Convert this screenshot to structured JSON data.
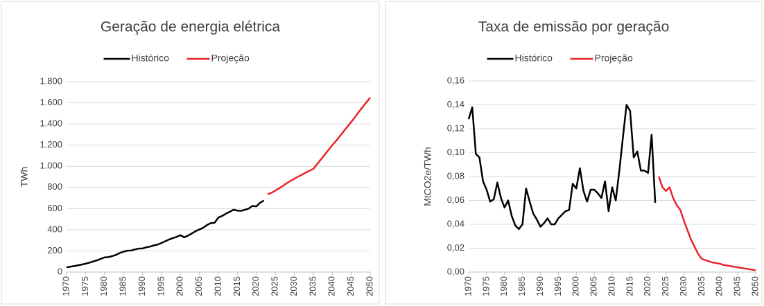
{
  "chart_data": [
    {
      "type": "line",
      "title": "Geração de energia elétrica",
      "ylabel": "TWh",
      "xlim": [
        1970,
        2050
      ],
      "xticks": [
        1970,
        1975,
        1980,
        1985,
        1990,
        1995,
        2000,
        2005,
        2010,
        2015,
        2020,
        2025,
        2030,
        2035,
        2040,
        2045,
        2050
      ],
      "ylim": [
        0,
        1800
      ],
      "yticks": [
        0,
        200,
        400,
        600,
        800,
        {
          "value": 1000,
          "label": "1.000"
        },
        {
          "value": 1200,
          "label": "1.200"
        },
        {
          "value": 1400,
          "label": "1.400"
        },
        {
          "value": 1600,
          "label": "1.600"
        },
        {
          "value": 1800,
          "label": "1.800"
        }
      ],
      "grid": true,
      "legend": "top",
      "series": [
        {
          "name": "Histórico",
          "color": "#000000",
          "x": [
            1970,
            1971,
            1972,
            1973,
            1974,
            1975,
            1976,
            1977,
            1978,
            1979,
            1980,
            1981,
            1982,
            1983,
            1984,
            1985,
            1986,
            1987,
            1988,
            1989,
            1990,
            1991,
            1992,
            1993,
            1994,
            1995,
            1996,
            1997,
            1998,
            1999,
            2000,
            2001,
            2002,
            2003,
            2004,
            2005,
            2006,
            2007,
            2008,
            2009,
            2010,
            2011,
            2012,
            2013,
            2014,
            2015,
            2016,
            2017,
            2018,
            2019,
            2020,
            2021,
            2022
          ],
          "values": [
            45,
            51,
            57,
            64,
            71,
            79,
            89,
            100,
            111,
            125,
            139,
            141,
            151,
            162,
            180,
            193,
            202,
            204,
            214,
            222,
            223,
            234,
            241,
            252,
            260,
            275,
            291,
            308,
            321,
            333,
            349,
            328,
            345,
            365,
            387,
            403,
            419,
            445,
            463,
            466,
            516,
            531,
            552,
            570,
            590,
            581,
            579,
            589,
            601,
            626,
            621,
            656,
            677
          ]
        },
        {
          "name": "Projeção",
          "color": "#e8242b",
          "x": [
            2023,
            2024,
            2025,
            2026,
            2027,
            2028,
            2029,
            2030,
            2031,
            2032,
            2033,
            2034,
            2035,
            2036,
            2037,
            2038,
            2039,
            2040,
            2041,
            2042,
            2043,
            2044,
            2045,
            2046,
            2047,
            2048,
            2049,
            2050
          ],
          "values": [
            735,
            750,
            770,
            792,
            815,
            840,
            862,
            882,
            902,
            920,
            940,
            958,
            975,
            1020,
            1065,
            1110,
            1155,
            1200,
            1240,
            1285,
            1330,
            1375,
            1420,
            1465,
            1515,
            1560,
            1605,
            1650
          ]
        }
      ]
    },
    {
      "type": "line",
      "title": "Taxa de emissão por geração",
      "ylabel": "MtCO2e/TWh",
      "xlim": [
        1970,
        2050
      ],
      "xticks": [
        1970,
        1975,
        1980,
        1985,
        1990,
        1995,
        2000,
        2005,
        2010,
        2015,
        2020,
        2025,
        2030,
        2035,
        2040,
        2045,
        2050
      ],
      "ylim": [
        0,
        0.16
      ],
      "yticks": [
        {
          "value": 0,
          "label": "0,00"
        },
        {
          "value": 0.02,
          "label": "0,02"
        },
        {
          "value": 0.04,
          "label": "0,04"
        },
        {
          "value": 0.06,
          "label": "0,06"
        },
        {
          "value": 0.08,
          "label": "0,08"
        },
        {
          "value": 0.1,
          "label": "0,10"
        },
        {
          "value": 0.12,
          "label": "0,12"
        },
        {
          "value": 0.14,
          "label": "0,14"
        },
        {
          "value": 0.16,
          "label": "0,16"
        }
      ],
      "grid": true,
      "legend": "top",
      "series": [
        {
          "name": "Histórico",
          "color": "#000000",
          "x": [
            1970,
            1971,
            1972,
            1973,
            1974,
            1975,
            1976,
            1977,
            1978,
            1979,
            1980,
            1981,
            1982,
            1983,
            1984,
            1985,
            1986,
            1987,
            1988,
            1989,
            1990,
            1991,
            1992,
            1993,
            1994,
            1995,
            1996,
            1997,
            1998,
            1999,
            2000,
            2001,
            2002,
            2003,
            2004,
            2005,
            2006,
            2007,
            2008,
            2009,
            2010,
            2011,
            2012,
            2013,
            2014,
            2015,
            2016,
            2017,
            2018,
            2019,
            2020,
            2021,
            2022
          ],
          "values": [
            0.128,
            0.138,
            0.099,
            0.096,
            0.076,
            0.069,
            0.059,
            0.061,
            0.075,
            0.062,
            0.054,
            0.06,
            0.047,
            0.039,
            0.036,
            0.04,
            0.07,
            0.059,
            0.049,
            0.044,
            0.038,
            0.041,
            0.045,
            0.04,
            0.04,
            0.045,
            0.048,
            0.051,
            0.052,
            0.074,
            0.07,
            0.087,
            0.068,
            0.059,
            0.069,
            0.069,
            0.066,
            0.062,
            0.076,
            0.051,
            0.071,
            0.06,
            0.085,
            0.113,
            0.14,
            0.135,
            0.096,
            0.101,
            0.085,
            0.085,
            0.083,
            0.115,
            0.058
          ]
        },
        {
          "name": "Projeção",
          "color": "#e8242b",
          "x": [
            2023,
            2024,
            2025,
            2026,
            2027,
            2028,
            2029,
            2030,
            2031,
            2032,
            2033,
            2034,
            2035,
            2036,
            2037,
            2038,
            2039,
            2040,
            2041,
            2042,
            2043,
            2044,
            2045,
            2046,
            2047,
            2048,
            2049,
            2050
          ],
          "values": [
            0.08,
            0.071,
            0.068,
            0.071,
            0.062,
            0.056,
            0.052,
            0.043,
            0.035,
            0.027,
            0.021,
            0.015,
            0.011,
            0.01,
            0.009,
            0.008,
            0.0075,
            0.007,
            0.006,
            0.0055,
            0.005,
            0.0045,
            0.004,
            0.0035,
            0.003,
            0.0025,
            0.002,
            0.0015
          ]
        }
      ]
    }
  ]
}
